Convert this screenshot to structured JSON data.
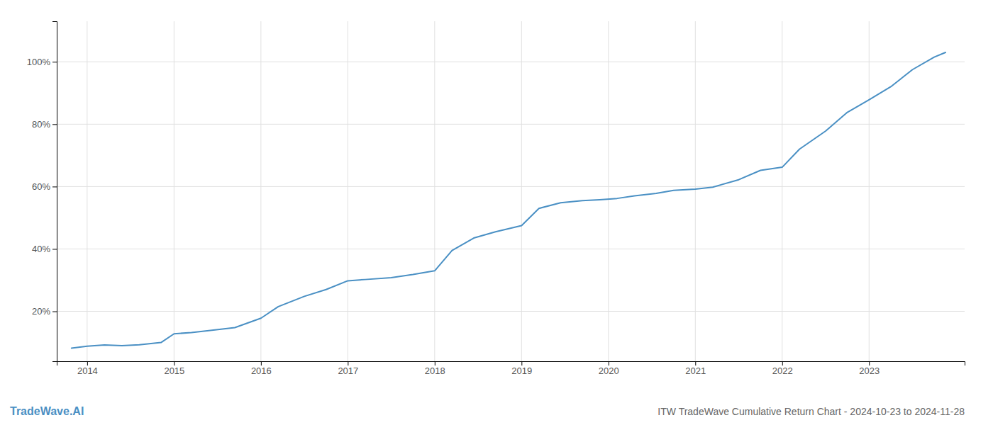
{
  "chart_data": {
    "type": "line",
    "title": "ITW TradeWave Cumulative Return Chart - 2024-10-23 to 2024-11-28",
    "annotations": [
      {
        "text": "TradeWave.AI"
      }
    ],
    "color": "#4a90c4",
    "x": [
      2013.82,
      2014.0,
      2014.2,
      2014.4,
      2014.6,
      2014.85,
      2015.0,
      2015.2,
      2015.4,
      2015.7,
      2016.0,
      2016.2,
      2016.5,
      2016.75,
      2017.0,
      2017.2,
      2017.5,
      2017.75,
      2018.0,
      2018.2,
      2018.45,
      2018.7,
      2019.0,
      2019.2,
      2019.45,
      2019.7,
      2019.9,
      2020.1,
      2020.3,
      2020.55,
      2020.75,
      2021.0,
      2021.2,
      2021.5,
      2021.75,
      2022.0,
      2022.2,
      2022.5,
      2022.75,
      2023.0,
      2023.25,
      2023.5,
      2023.75,
      2023.88
    ],
    "values": [
      0.082,
      0.088,
      0.092,
      0.09,
      0.093,
      0.1,
      0.128,
      0.132,
      0.138,
      0.148,
      0.178,
      0.215,
      0.248,
      0.27,
      0.298,
      0.302,
      0.308,
      0.318,
      0.33,
      0.395,
      0.435,
      0.455,
      0.475,
      0.53,
      0.548,
      0.555,
      0.558,
      0.562,
      0.57,
      0.578,
      0.588,
      0.592,
      0.598,
      0.622,
      0.652,
      0.662,
      0.72,
      0.778,
      0.838,
      0.878,
      0.92,
      0.975,
      1.015,
      1.03
    ],
    "xlim": [
      2013.65,
      2024.1
    ],
    "ylim": [
      0.04,
      1.13
    ],
    "xticks": [
      2014,
      2015,
      2016,
      2017,
      2018,
      2019,
      2020,
      2021,
      2022,
      2023
    ],
    "yticks": [
      {
        "value": 0.2,
        "label": "20%"
      },
      {
        "value": 0.4,
        "label": "40%"
      },
      {
        "value": 0.6,
        "label": "60%"
      },
      {
        "value": 0.8,
        "label": "80%"
      },
      {
        "value": 1.0,
        "label": "100%"
      }
    ],
    "grid": true
  }
}
